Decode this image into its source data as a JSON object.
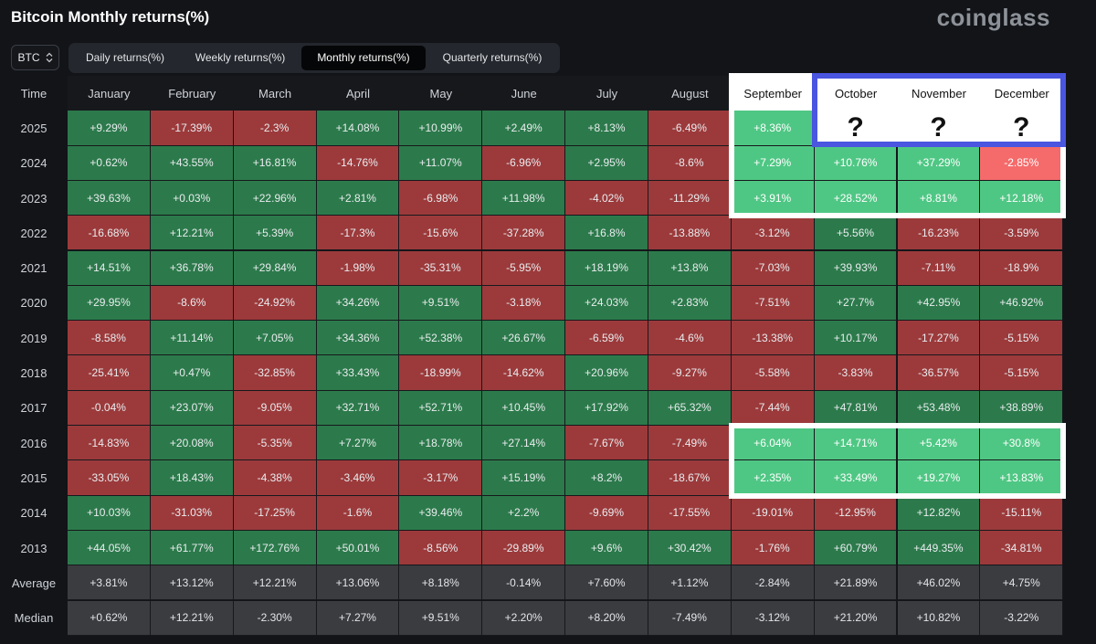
{
  "title": "Bitcoin Monthly returns(%)",
  "brand": "coinglass",
  "asset": {
    "value": "BTC",
    "icon": "chevron-up-down-icon"
  },
  "tabs": [
    {
      "label": "Daily returns(%)",
      "active": false
    },
    {
      "label": "Weekly returns(%)",
      "active": false
    },
    {
      "label": "Monthly returns(%)",
      "active": true
    },
    {
      "label": "Quarterly returns(%)",
      "active": false
    }
  ],
  "colors": {
    "positive": "#2c7a4b",
    "negative": "#9c3a3b",
    "positive_highlight": "#4fc784",
    "negative_highlight": "#f56b6b",
    "stat": "#3a3c40",
    "white_box": "#ffffff",
    "blue_box": "#4a55e0"
  },
  "chart_data": {
    "type": "table",
    "corner_label": "Time",
    "columns": [
      "January",
      "February",
      "March",
      "April",
      "May",
      "June",
      "July",
      "August",
      "September",
      "October",
      "November",
      "December"
    ],
    "rows": [
      {
        "label": "2025",
        "values": [
          "+9.29%",
          "-17.39%",
          "-2.3%",
          "+14.08%",
          "+10.99%",
          "+2.49%",
          "+8.13%",
          "-6.49%",
          "+8.36%",
          "?",
          "?",
          "?"
        ]
      },
      {
        "label": "2024",
        "values": [
          "+0.62%",
          "+43.55%",
          "+16.81%",
          "-14.76%",
          "+11.07%",
          "-6.96%",
          "+2.95%",
          "-8.6%",
          "+7.29%",
          "+10.76%",
          "+37.29%",
          "-2.85%"
        ]
      },
      {
        "label": "2023",
        "values": [
          "+39.63%",
          "+0.03%",
          "+22.96%",
          "+2.81%",
          "-6.98%",
          "+11.98%",
          "-4.02%",
          "-11.29%",
          "+3.91%",
          "+28.52%",
          "+8.81%",
          "+12.18%"
        ]
      },
      {
        "label": "2022",
        "values": [
          "-16.68%",
          "+12.21%",
          "+5.39%",
          "-17.3%",
          "-15.6%",
          "-37.28%",
          "+16.8%",
          "-13.88%",
          "-3.12%",
          "+5.56%",
          "-16.23%",
          "-3.59%"
        ]
      },
      {
        "label": "2021",
        "values": [
          "+14.51%",
          "+36.78%",
          "+29.84%",
          "-1.98%",
          "-35.31%",
          "-5.95%",
          "+18.19%",
          "+13.8%",
          "-7.03%",
          "+39.93%",
          "-7.11%",
          "-18.9%"
        ]
      },
      {
        "label": "2020",
        "values": [
          "+29.95%",
          "-8.6%",
          "-24.92%",
          "+34.26%",
          "+9.51%",
          "-3.18%",
          "+24.03%",
          "+2.83%",
          "-7.51%",
          "+27.7%",
          "+42.95%",
          "+46.92%"
        ]
      },
      {
        "label": "2019",
        "values": [
          "-8.58%",
          "+11.14%",
          "+7.05%",
          "+34.36%",
          "+52.38%",
          "+26.67%",
          "-6.59%",
          "-4.6%",
          "-13.38%",
          "+10.17%",
          "-17.27%",
          "-5.15%"
        ]
      },
      {
        "label": "2018",
        "values": [
          "-25.41%",
          "+0.47%",
          "-32.85%",
          "+33.43%",
          "-18.99%",
          "-14.62%",
          "+20.96%",
          "-9.27%",
          "-5.58%",
          "-3.83%",
          "-36.57%",
          "-5.15%"
        ]
      },
      {
        "label": "2017",
        "values": [
          "-0.04%",
          "+23.07%",
          "-9.05%",
          "+32.71%",
          "+52.71%",
          "+10.45%",
          "+17.92%",
          "+65.32%",
          "-7.44%",
          "+47.81%",
          "+53.48%",
          "+38.89%"
        ]
      },
      {
        "label": "2016",
        "values": [
          "-14.83%",
          "+20.08%",
          "-5.35%",
          "+7.27%",
          "+18.78%",
          "+27.14%",
          "-7.67%",
          "-7.49%",
          "+6.04%",
          "+14.71%",
          "+5.42%",
          "+30.8%"
        ]
      },
      {
        "label": "2015",
        "values": [
          "-33.05%",
          "+18.43%",
          "-4.38%",
          "-3.46%",
          "-3.17%",
          "+15.19%",
          "+8.2%",
          "-18.67%",
          "+2.35%",
          "+33.49%",
          "+19.27%",
          "+13.83%"
        ]
      },
      {
        "label": "2014",
        "values": [
          "+10.03%",
          "-31.03%",
          "-17.25%",
          "-1.6%",
          "+39.46%",
          "+2.2%",
          "-9.69%",
          "-17.55%",
          "-19.01%",
          "-12.95%",
          "+12.82%",
          "-15.11%"
        ]
      },
      {
        "label": "2013",
        "values": [
          "+44.05%",
          "+61.77%",
          "+172.76%",
          "+50.01%",
          "-8.56%",
          "-29.89%",
          "+9.6%",
          "+30.42%",
          "-1.76%",
          "+60.79%",
          "+449.35%",
          "-34.81%"
        ]
      }
    ],
    "summary": [
      {
        "label": "Average",
        "values": [
          "+3.81%",
          "+13.12%",
          "+12.21%",
          "+13.06%",
          "+8.18%",
          "-0.14%",
          "+7.60%",
          "+1.12%",
          "-2.84%",
          "+21.89%",
          "+46.02%",
          "+4.75%"
        ]
      },
      {
        "label": "Median",
        "values": [
          "+0.62%",
          "+12.21%",
          "-2.30%",
          "+7.27%",
          "+9.51%",
          "+2.20%",
          "+8.20%",
          "-7.49%",
          "-3.12%",
          "+21.20%",
          "+10.82%",
          "-3.22%"
        ]
      }
    ]
  }
}
